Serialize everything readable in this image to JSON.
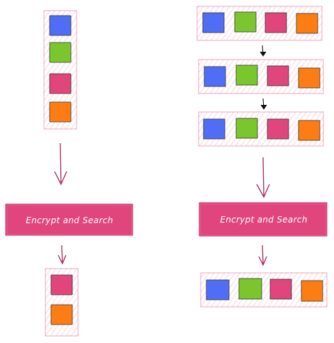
{
  "colors": {
    "blue": "#4f6ef5",
    "green": "#7bc62d",
    "pink": "#e0457b",
    "orange": "#fd7d14",
    "hatch": "#e55a8a",
    "arrow": "#a8245a",
    "arrow_dark": "#111111",
    "button_fill": "#e0457b",
    "button_text": "#ffffff"
  },
  "left_flow": {
    "input_group": [
      "blue",
      "green",
      "pink",
      "orange"
    ],
    "process_label": "Encrypt and Search",
    "output_group": [
      "pink",
      "orange"
    ]
  },
  "right_flow": {
    "input_groups": [
      [
        "blue",
        "green",
        "pink",
        "orange"
      ],
      [
        "blue",
        "green",
        "pink",
        "orange"
      ],
      [
        "blue",
        "green",
        "pink",
        "orange"
      ]
    ],
    "process_label": "Encrypt and Search",
    "output_group": [
      "blue",
      "green",
      "pink",
      "orange"
    ]
  }
}
